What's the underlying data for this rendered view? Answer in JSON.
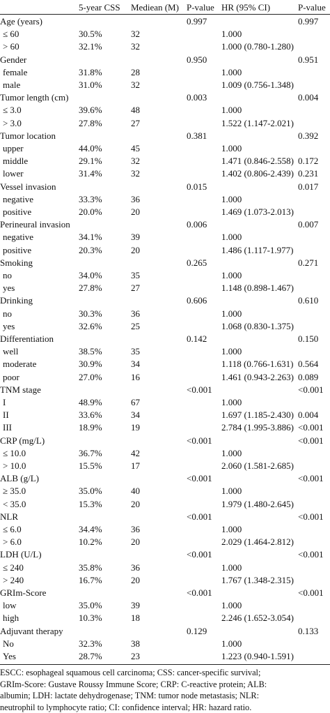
{
  "table": {
    "header": [
      null,
      "5-year CSS",
      "Mediean (M)",
      "P-value",
      "HR (95% CI)",
      "P-value"
    ],
    "rows": [
      [
        "Age (years)",
        null,
        null,
        "0.997",
        null,
        "0.997"
      ],
      [
        "≤ 60",
        "30.5%",
        "32",
        null,
        "1.000",
        null
      ],
      [
        "> 60",
        "32.1%",
        "32",
        null,
        "1.000 (0.780-1.280)",
        null
      ],
      [
        "Gender",
        null,
        null,
        "0.950",
        null,
        "0.951"
      ],
      [
        "female",
        "31.8%",
        "28",
        null,
        "1.000",
        null
      ],
      [
        "male",
        "31.0%",
        "32",
        null,
        "1.009 (0.756-1.348)",
        null
      ],
      [
        "Tumor length (cm)",
        null,
        null,
        "0.003",
        null,
        "0.004"
      ],
      [
        "≤ 3.0",
        "39.6%",
        "48",
        null,
        "1.000",
        null
      ],
      [
        "> 3.0",
        "27.8%",
        "27",
        null,
        "1.522 (1.147-2.021)",
        null
      ],
      [
        "Tumor location",
        null,
        null,
        "0.381",
        null,
        "0.392"
      ],
      [
        "upper",
        "44.0%",
        "45",
        null,
        "1.000",
        null
      ],
      [
        "middle",
        "29.1%",
        "32",
        null,
        "1.471 (0.846-2.558)",
        "0.172"
      ],
      [
        "lower",
        "31.4%",
        "32",
        null,
        "1.402 (0.806-2.439)",
        "0.231"
      ],
      [
        "Vessel invasion",
        null,
        null,
        "0.015",
        null,
        "0.017"
      ],
      [
        "negative",
        "33.3%",
        "36",
        null,
        "1.000",
        null
      ],
      [
        "positive",
        "20.0%",
        "20",
        null,
        "1.469 (1.073-2.013)",
        null
      ],
      [
        "Perineural invasion",
        null,
        null,
        "0.006",
        null,
        "0.007"
      ],
      [
        "negative",
        "34.1%",
        "39",
        null,
        "1.000",
        null
      ],
      [
        "positive",
        "20.3%",
        "20",
        null,
        "1.486 (1.117-1.977)",
        null
      ],
      [
        "Smoking",
        null,
        null,
        "0.265",
        null,
        "0.271"
      ],
      [
        "no",
        "34.0%",
        "35",
        null,
        "1.000",
        null
      ],
      [
        "yes",
        "27.8%",
        "27",
        null,
        "1.148 (0.898-1.467)",
        null
      ],
      [
        "Drinking",
        null,
        null,
        "0.606",
        null,
        "0.610"
      ],
      [
        "no",
        "30.3%",
        "36",
        null,
        "1.000",
        null
      ],
      [
        "yes",
        "32.6%",
        "25",
        null,
        "1.068 (0.830-1.375)",
        null
      ],
      [
        "Differentiation",
        null,
        null,
        "0.142",
        null,
        "0.150"
      ],
      [
        "well",
        "38.5%",
        "35",
        null,
        "1.000",
        null
      ],
      [
        "moderate",
        "30.9%",
        "34",
        null,
        "1.118 (0.766-1.631)",
        "0.564"
      ],
      [
        "poor",
        "27.0%",
        "16",
        null,
        "1.461 (0.943-2.263)",
        "0.089"
      ],
      [
        "TNM stage",
        null,
        null,
        "<0.001",
        null,
        "<0.001"
      ],
      [
        "I",
        "48.9%",
        "67",
        null,
        "1.000",
        null
      ],
      [
        "II",
        "33.6%",
        "34",
        null,
        "1.697 (1.185-2.430)",
        "0.004"
      ],
      [
        "III",
        "18.9%",
        "19",
        null,
        "2.784 (1.995-3.886)",
        "<0.001"
      ],
      [
        "CRP (mg/L)",
        null,
        null,
        "<0.001",
        null,
        "<0.001"
      ],
      [
        "≤ 10.0",
        "36.7%",
        "42",
        null,
        "1.000",
        null
      ],
      [
        "> 10.0",
        "15.5%",
        "17",
        null,
        "2.060 (1.581-2.685)",
        null
      ],
      [
        "ALB (g/L)",
        null,
        null,
        "<0.001",
        null,
        "<0.001"
      ],
      [
        "≥ 35.0",
        "35.0%",
        "40",
        null,
        "1.000",
        null
      ],
      [
        "< 35.0",
        "15.3%",
        "20",
        null,
        "1.979 (1.480-2.645)",
        null
      ],
      [
        "NLR",
        null,
        null,
        "<0.001",
        null,
        "<0.001"
      ],
      [
        "≤ 6.0",
        "34.4%",
        "36",
        null,
        "1.000",
        null
      ],
      [
        "> 6.0",
        "10.2%",
        "20",
        null,
        "2.029 (1.464-2.812)",
        null
      ],
      [
        "LDH (U/L)",
        null,
        null,
        "<0.001",
        null,
        "<0.001"
      ],
      [
        "≤ 240",
        "35.8%",
        "36",
        null,
        "1.000",
        null
      ],
      [
        "> 240",
        "16.7%",
        "20",
        null,
        "1.767 (1.348-2.315)",
        null
      ],
      [
        "GRIm-Score",
        null,
        null,
        "<0.001",
        null,
        "<0.001"
      ],
      [
        "low",
        "35.0%",
        "39",
        null,
        "1.000",
        null
      ],
      [
        "high",
        "10.3%",
        "18",
        null,
        "2.246 (1.652-3.054)",
        null
      ],
      [
        "Adjuvant therapy",
        null,
        null,
        "0.129",
        null,
        "0.133"
      ],
      [
        "No",
        "32.3%",
        "38",
        null,
        "1.000",
        null
      ],
      [
        "Yes",
        "28.7%",
        "23",
        null,
        "1.223 (0.940-1.591)",
        null
      ]
    ],
    "footnote": [
      "ESCC: esophageal squamous cell carcinoma; CSS: cancer-specific survival;",
      "GRIm-Score: Gustave Roussy Immune Score; CRP: C-reactive protein; ALB:",
      "albumin; LDH: lactate dehydrogenase; TNM: tumor node metastasis; NLR:",
      "neutrophil to lymphocyte ratio; CI: confidence interval; HR: hazard ratio."
    ]
  }
}
